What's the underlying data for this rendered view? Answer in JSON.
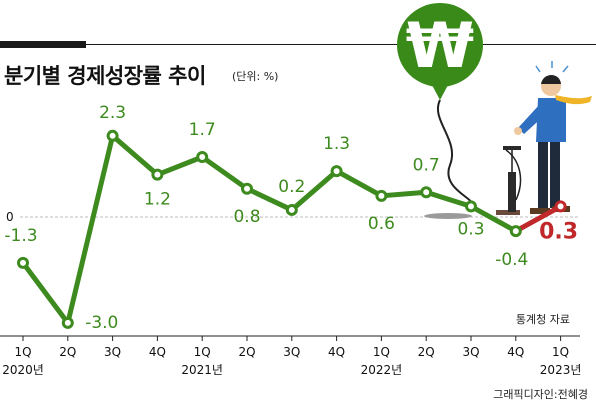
{
  "title": "분기별 경제성장률 추이",
  "unit": "(단위: %)",
  "source": "통계청 자료",
  "credit": "그래픽디자인:전혜경",
  "balloon_symbol": "₩",
  "colors": {
    "series": "#3d8a1e",
    "last": "#c0282b",
    "balloon": "#3a8a1a"
  },
  "chart_data": {
    "type": "line",
    "categories": [
      "1Q",
      "2Q",
      "3Q",
      "4Q",
      "1Q",
      "2Q",
      "3Q",
      "4Q",
      "1Q",
      "2Q",
      "3Q",
      "4Q",
      "1Q"
    ],
    "year_labels": [
      "2020년",
      "2021년",
      "2022년",
      "2023년"
    ],
    "values": [
      -1.3,
      -3.0,
      2.3,
      1.2,
      1.7,
      0.8,
      0.2,
      1.3,
      0.6,
      0.7,
      0.3,
      -0.4,
      0.3
    ],
    "value_labels": [
      "-1.3",
      "-3.0",
      "2.3",
      "1.2",
      "1.7",
      "0.8",
      "0.2",
      "1.3",
      "0.6",
      "0.7",
      "0.3",
      "-0.4",
      "0.3"
    ],
    "zero_label": "0",
    "highlight_last": true
  }
}
